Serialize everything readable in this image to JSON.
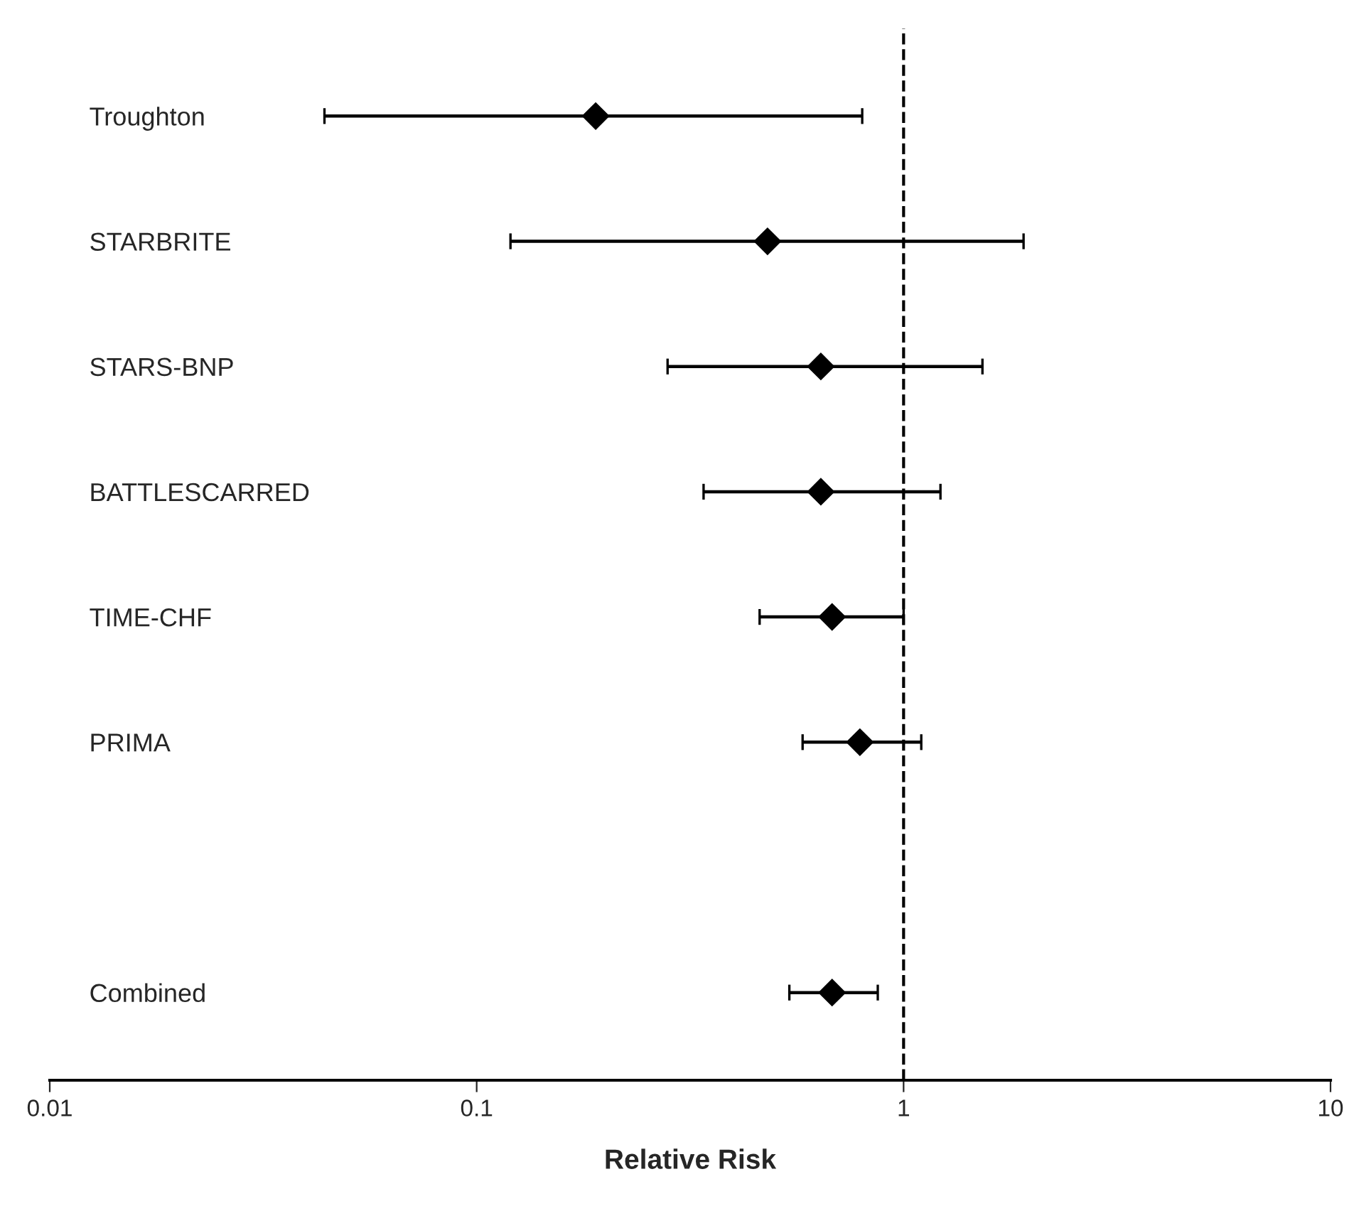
{
  "chart_data": {
    "type": "scatter",
    "orientation": "horizontal",
    "xlabel": "Relative Risk",
    "categories": [
      "Troughton",
      "STARBRITE",
      "STARS-BNP",
      "BATTLESCARRED",
      "TIME-CHF",
      "PRIMA",
      null,
      "Combined"
    ],
    "values": [
      0.19,
      0.48,
      0.64,
      0.64,
      0.68,
      0.79,
      null,
      0.68
    ],
    "errors": [
      [
        0.044,
        0.8
      ],
      [
        0.12,
        1.91
      ],
      [
        0.28,
        1.53
      ],
      [
        0.34,
        1.22
      ],
      [
        0.46,
        1.0
      ],
      [
        0.58,
        1.1
      ],
      null,
      [
        0.54,
        0.87
      ]
    ],
    "color": "#000000",
    "marker": "diamond",
    "log": "x",
    "xlim": [
      0.01,
      10
    ],
    "xticks": [
      0.01,
      0.1,
      1,
      10
    ],
    "ref_lines": [
      {
        "axis": "x",
        "value": 1,
        "line_style": "dashed",
        "color": "#000000"
      }
    ],
    "grid": false,
    "legend": false
  }
}
